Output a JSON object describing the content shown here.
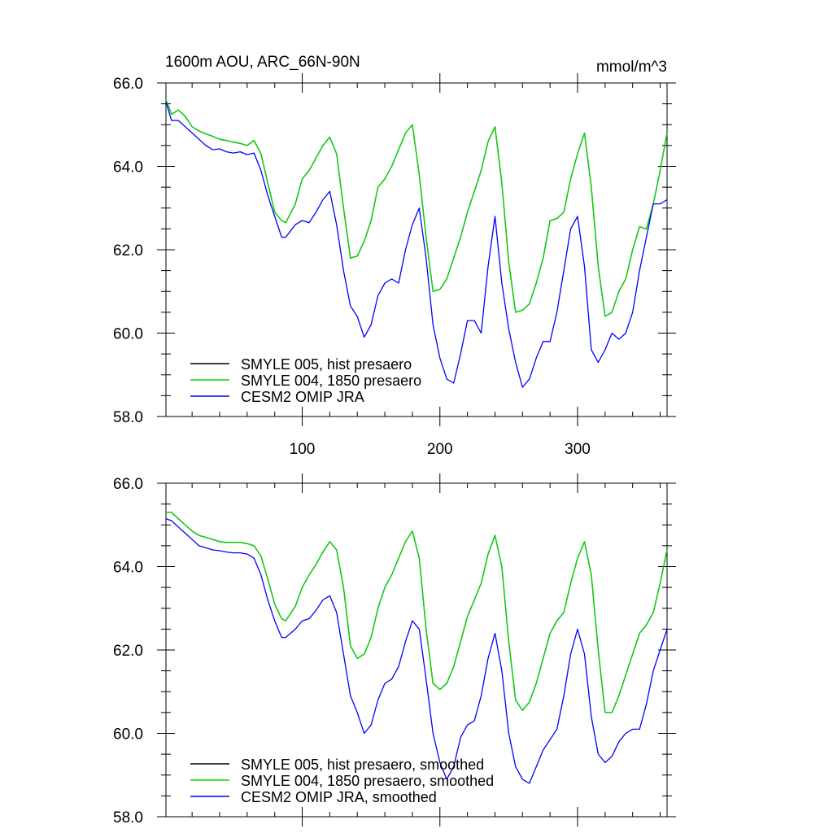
{
  "header": {
    "title": "1600m AOU, ARC_66N-90N",
    "units": "mmol/m^3"
  },
  "colors": {
    "hist": "#000000",
    "presaero1850": "#00dd00",
    "omip": "#0000ff"
  },
  "chart_data": [
    {
      "type": "line",
      "title": "1600m AOU, ARC_66N-90N",
      "units": "mmol/m^3",
      "xlim": [
        1,
        365
      ],
      "ylim": [
        58.0,
        66.0
      ],
      "x_tick_labels": [
        "100",
        "200",
        "300"
      ],
      "y_tick_labels": [
        "58.0",
        "60.0",
        "62.0",
        "64.0",
        "66.0"
      ],
      "grid": false,
      "legend_position": "bottom-left",
      "x": [
        1,
        5,
        10,
        15,
        20,
        25,
        30,
        35,
        40,
        45,
        50,
        55,
        60,
        65,
        70,
        75,
        80,
        85,
        88,
        95,
        100,
        105,
        110,
        115,
        120,
        125,
        130,
        135,
        140,
        145,
        150,
        155,
        160,
        165,
        170,
        175,
        180,
        185,
        190,
        195,
        200,
        205,
        210,
        215,
        220,
        225,
        230,
        235,
        240,
        245,
        250,
        255,
        260,
        265,
        270,
        275,
        280,
        285,
        290,
        295,
        300,
        305,
        310,
        315,
        320,
        325,
        330,
        335,
        340,
        345,
        350,
        355,
        360,
        365
      ],
      "series": [
        {
          "name": "SMYLE 005, hist presaero",
          "color": "#000000",
          "values": [
            65.6,
            65.25,
            65.35,
            65.2,
            64.95,
            64.85,
            64.78,
            64.72,
            64.65,
            64.62,
            64.58,
            64.55,
            64.5,
            64.62,
            64.3,
            63.6,
            62.9,
            62.7,
            62.65,
            63.1,
            63.7,
            63.9,
            64.2,
            64.5,
            64.7,
            64.3,
            63.0,
            61.8,
            61.85,
            62.2,
            62.7,
            63.5,
            63.7,
            64.0,
            64.4,
            64.8,
            65.0,
            63.8,
            62.3,
            61.0,
            61.05,
            61.3,
            61.8,
            62.3,
            62.9,
            63.4,
            63.9,
            64.6,
            64.95,
            63.6,
            61.7,
            60.5,
            60.55,
            60.7,
            61.2,
            61.8,
            62.7,
            62.75,
            62.9,
            63.7,
            64.3,
            64.8,
            63.5,
            61.6,
            60.4,
            60.5,
            61.0,
            61.3,
            62.0,
            62.55,
            62.5,
            63.1,
            63.9,
            64.8
          ]
        },
        {
          "name": "SMYLE 004, 1850 presaero",
          "color": "#00dd00",
          "values": [
            65.6,
            65.25,
            65.35,
            65.2,
            64.95,
            64.85,
            64.78,
            64.72,
            64.65,
            64.62,
            64.58,
            64.55,
            64.5,
            64.62,
            64.3,
            63.6,
            62.9,
            62.7,
            62.65,
            63.1,
            63.7,
            63.9,
            64.2,
            64.5,
            64.7,
            64.3,
            63.0,
            61.8,
            61.85,
            62.2,
            62.7,
            63.5,
            63.7,
            64.0,
            64.4,
            64.8,
            65.0,
            63.8,
            62.3,
            61.0,
            61.05,
            61.3,
            61.8,
            62.3,
            62.9,
            63.4,
            63.9,
            64.6,
            64.95,
            63.6,
            61.7,
            60.5,
            60.55,
            60.7,
            61.2,
            61.8,
            62.7,
            62.75,
            62.9,
            63.7,
            64.3,
            64.8,
            63.5,
            61.6,
            60.4,
            60.5,
            61.0,
            61.3,
            62.0,
            62.55,
            62.5,
            63.1,
            63.9,
            64.8
          ]
        },
        {
          "name": "CESM2 OMIP JRA",
          "color": "#0000ff",
          "values": [
            65.55,
            65.1,
            65.1,
            64.95,
            64.8,
            64.65,
            64.5,
            64.4,
            64.42,
            64.35,
            64.32,
            64.35,
            64.28,
            64.32,
            63.9,
            63.3,
            62.8,
            62.3,
            62.3,
            62.6,
            62.7,
            62.65,
            62.9,
            63.2,
            63.4,
            62.6,
            61.5,
            60.65,
            60.4,
            59.9,
            60.2,
            60.9,
            61.2,
            61.3,
            61.2,
            62.0,
            62.6,
            63.0,
            61.8,
            60.2,
            59.4,
            58.9,
            58.8,
            59.5,
            60.3,
            60.3,
            60.0,
            61.6,
            62.8,
            61.2,
            60.1,
            59.3,
            58.7,
            58.9,
            59.4,
            59.8,
            59.8,
            60.5,
            61.5,
            62.5,
            62.8,
            61.6,
            59.6,
            59.3,
            59.6,
            60.0,
            59.85,
            60.0,
            60.5,
            61.5,
            62.3,
            63.1,
            63.1,
            63.2
          ]
        }
      ]
    },
    {
      "type": "line",
      "xlim": [
        1,
        365
      ],
      "ylim": [
        58.0,
        66.0
      ],
      "y_tick_labels": [
        "58.0",
        "60.0",
        "62.0",
        "64.0",
        "66.0"
      ],
      "grid": false,
      "legend_position": "bottom-left",
      "x": [
        1,
        5,
        10,
        15,
        20,
        25,
        30,
        35,
        40,
        45,
        50,
        55,
        60,
        65,
        70,
        75,
        80,
        85,
        88,
        95,
        100,
        105,
        110,
        115,
        120,
        125,
        130,
        135,
        140,
        145,
        150,
        155,
        160,
        165,
        170,
        175,
        180,
        185,
        190,
        195,
        200,
        205,
        210,
        215,
        220,
        225,
        230,
        235,
        240,
        245,
        250,
        255,
        260,
        265,
        270,
        275,
        280,
        285,
        290,
        295,
        300,
        305,
        310,
        315,
        320,
        325,
        330,
        335,
        340,
        345,
        350,
        355,
        360,
        365
      ],
      "series": [
        {
          "name": "SMYLE 005, hist presaero, smoothed",
          "color": "#000000",
          "values": [
            65.3,
            65.3,
            65.15,
            65.0,
            64.85,
            64.75,
            64.7,
            64.65,
            64.6,
            64.58,
            64.58,
            64.58,
            64.55,
            64.5,
            64.25,
            63.7,
            63.1,
            62.75,
            62.7,
            63.05,
            63.5,
            63.8,
            64.05,
            64.35,
            64.6,
            64.4,
            63.5,
            62.1,
            61.8,
            61.9,
            62.3,
            63.0,
            63.5,
            63.8,
            64.2,
            64.6,
            64.85,
            64.2,
            62.5,
            61.2,
            61.05,
            61.2,
            61.6,
            62.2,
            62.8,
            63.2,
            63.6,
            64.3,
            64.75,
            64.0,
            62.2,
            60.8,
            60.55,
            60.75,
            61.2,
            61.8,
            62.4,
            62.7,
            62.9,
            63.6,
            64.2,
            64.6,
            63.8,
            62.0,
            60.5,
            60.5,
            60.9,
            61.4,
            61.9,
            62.4,
            62.6,
            62.9,
            63.6,
            64.4
          ]
        },
        {
          "name": "SMYLE 004, 1850 presaero, smoothed",
          "color": "#00dd00",
          "values": [
            65.3,
            65.3,
            65.15,
            65.0,
            64.85,
            64.75,
            64.7,
            64.65,
            64.6,
            64.58,
            64.58,
            64.58,
            64.55,
            64.5,
            64.25,
            63.7,
            63.1,
            62.75,
            62.7,
            63.05,
            63.5,
            63.8,
            64.05,
            64.35,
            64.6,
            64.4,
            63.5,
            62.1,
            61.8,
            61.9,
            62.3,
            63.0,
            63.5,
            63.8,
            64.2,
            64.6,
            64.85,
            64.2,
            62.5,
            61.2,
            61.05,
            61.2,
            61.6,
            62.2,
            62.8,
            63.2,
            63.6,
            64.3,
            64.75,
            64.0,
            62.2,
            60.8,
            60.55,
            60.75,
            61.2,
            61.8,
            62.4,
            62.7,
            62.9,
            63.6,
            64.2,
            64.6,
            63.8,
            62.0,
            60.5,
            60.5,
            60.9,
            61.4,
            61.9,
            62.4,
            62.6,
            62.9,
            63.6,
            64.4
          ]
        },
        {
          "name": "CESM2 OMIP JRA, smoothed",
          "color": "#0000ff",
          "values": [
            65.15,
            65.1,
            64.95,
            64.8,
            64.65,
            64.5,
            64.45,
            64.4,
            64.38,
            64.35,
            64.33,
            64.33,
            64.3,
            64.2,
            63.8,
            63.2,
            62.7,
            62.3,
            62.3,
            62.5,
            62.7,
            62.75,
            62.95,
            63.2,
            63.3,
            62.9,
            61.9,
            60.9,
            60.5,
            60.0,
            60.2,
            60.8,
            61.2,
            61.3,
            61.6,
            62.2,
            62.7,
            62.5,
            61.3,
            60.0,
            59.3,
            58.9,
            59.2,
            59.9,
            60.2,
            60.3,
            60.9,
            61.8,
            62.4,
            61.5,
            60.0,
            59.2,
            58.9,
            58.8,
            59.2,
            59.6,
            59.85,
            60.1,
            60.9,
            61.9,
            62.5,
            61.9,
            60.4,
            59.5,
            59.3,
            59.45,
            59.8,
            60.0,
            60.1,
            60.1,
            60.7,
            61.5,
            62.0,
            62.5
          ]
        }
      ]
    }
  ]
}
